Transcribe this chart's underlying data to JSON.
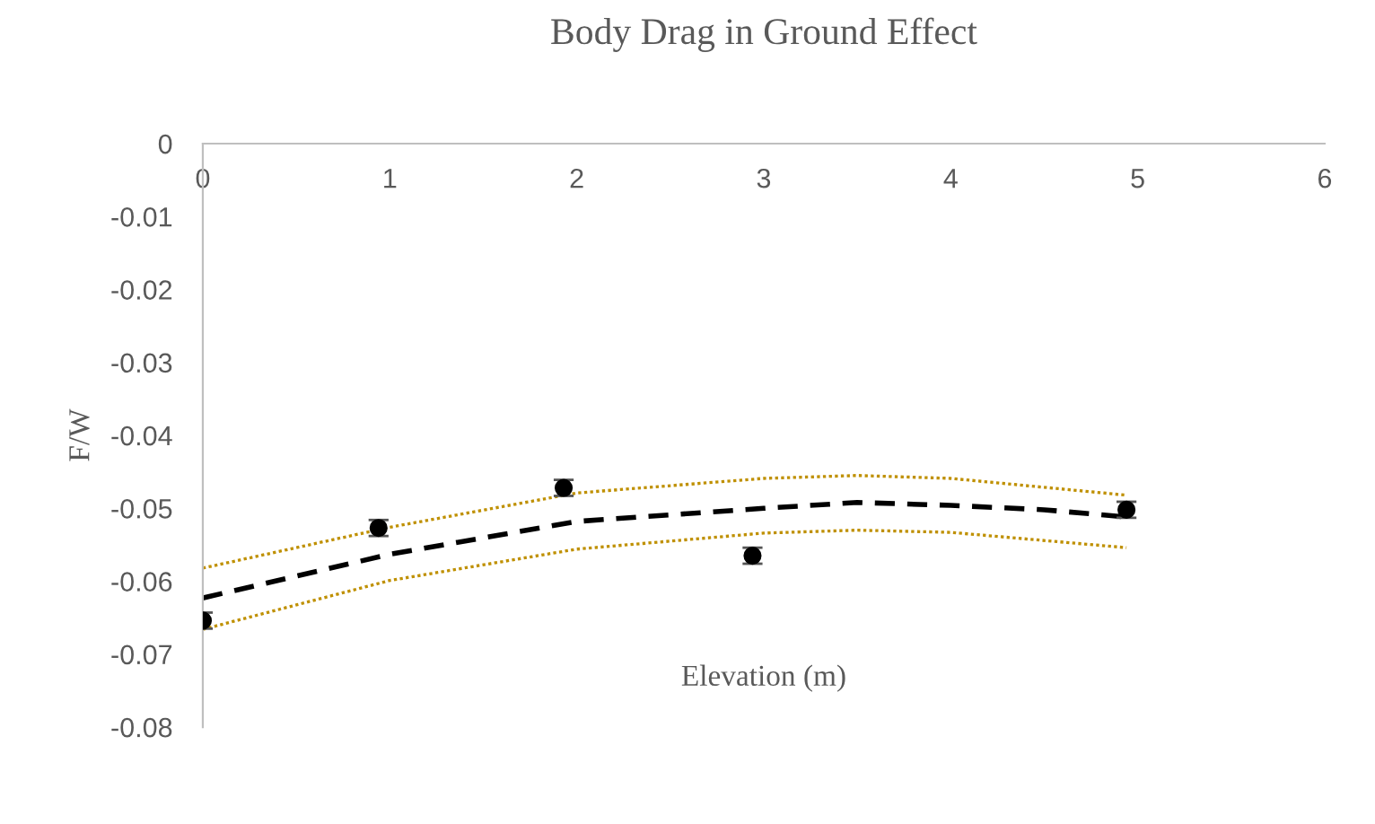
{
  "chart_data": {
    "type": "scatter",
    "title": "Body Drag in Ground Effect",
    "xlabel": "Elevation (m)",
    "ylabel": "F/W",
    "xlim": [
      0,
      6
    ],
    "xticks": [
      0,
      1,
      2,
      3,
      4,
      5,
      6
    ],
    "ylim": [
      -0.08,
      0
    ],
    "yticks": [
      -0.08,
      -0.07,
      -0.06,
      -0.05,
      -0.04,
      -0.03,
      -0.02,
      -0.01,
      0
    ],
    "grid": false,
    "legend": false,
    "series": [
      {
        "color": "#000000",
        "marker": "circle",
        "x": [
          0,
          0.94,
          1.93,
          2.94,
          4.94
        ],
        "values": [
          -0.0654,
          -0.0527,
          -0.0472,
          -0.0565,
          -0.0502
        ],
        "errors": [
          0.0011,
          0.0011,
          0.0011,
          0.0011,
          0.0011
        ]
      },
      {
        "type": "line",
        "color": "#000000",
        "line_style": "dashed",
        "marker": "none",
        "x": [
          0,
          1,
          2,
          3,
          3.5,
          4,
          4.5,
          4.94
        ],
        "values": [
          -0.0623,
          -0.0563,
          -0.0518,
          -0.05,
          -0.0492,
          -0.0496,
          -0.0502,
          -0.0512
        ]
      },
      {
        "type": "line",
        "color": "#bf9000",
        "line_style": "dotted",
        "marker": "none",
        "x": [
          0,
          1,
          2,
          3,
          3.5,
          4,
          4.94
        ],
        "values": [
          -0.0582,
          -0.0526,
          -0.0479,
          -0.0459,
          -0.0455,
          -0.0459,
          -0.0482
        ]
      },
      {
        "type": "line",
        "color": "#bf9000",
        "line_style": "dotted",
        "marker": "none",
        "x": [
          0,
          1,
          2,
          3,
          3.5,
          4,
          4.94
        ],
        "values": [
          -0.0666,
          -0.0599,
          -0.0556,
          -0.0534,
          -0.053,
          -0.0533,
          -0.0554
        ]
      }
    ]
  }
}
